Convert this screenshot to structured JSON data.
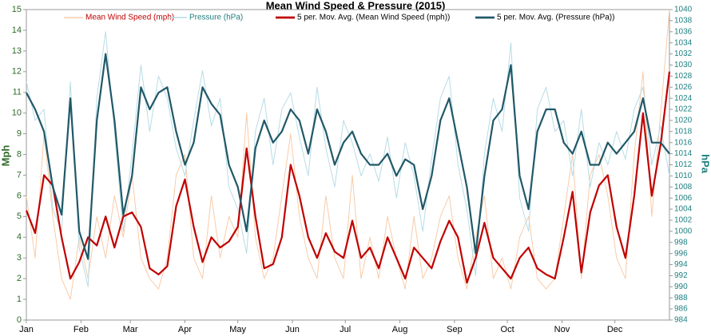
{
  "chart_data": {
    "type": "line",
    "title": "Mean Wind Speed & Pressure (2015)",
    "y_label": "Mph",
    "y2_label": "hPa",
    "xlim": [
      0,
      365
    ],
    "xticks": [
      {
        "value": 0,
        "label": "Jan"
      },
      {
        "value": 31,
        "label": "Feb"
      },
      {
        "value": 59,
        "label": "Mar"
      },
      {
        "value": 90,
        "label": "Apr"
      },
      {
        "value": 120,
        "label": "May"
      },
      {
        "value": 151,
        "label": "Jun"
      },
      {
        "value": 181,
        "label": "Jul"
      },
      {
        "value": 212,
        "label": "Aug"
      },
      {
        "value": 243,
        "label": "Sep"
      },
      {
        "value": 273,
        "label": "Oct"
      },
      {
        "value": 304,
        "label": "Nov"
      },
      {
        "value": 334,
        "label": "Dec"
      }
    ],
    "ylim": [
      0,
      15
    ],
    "yticks": [
      0,
      1,
      2,
      3,
      4,
      5,
      6,
      7,
      8,
      9,
      10,
      11,
      12,
      13,
      14,
      15
    ],
    "y2lim": [
      984,
      1040
    ],
    "y2ticks": [
      984,
      986,
      988,
      990,
      992,
      994,
      996,
      998,
      1000,
      1002,
      1004,
      1006,
      1008,
      1010,
      1012,
      1014,
      1016,
      1018,
      1020,
      1022,
      1024,
      1026,
      1028,
      1030,
      1032,
      1034,
      1036,
      1038,
      1040
    ],
    "x": [
      0,
      5,
      10,
      15,
      20,
      25,
      30,
      35,
      40,
      45,
      50,
      55,
      60,
      65,
      70,
      75,
      80,
      85,
      90,
      95,
      100,
      105,
      110,
      115,
      120,
      125,
      130,
      135,
      140,
      145,
      150,
      155,
      160,
      165,
      170,
      175,
      180,
      185,
      190,
      195,
      200,
      205,
      210,
      215,
      220,
      225,
      230,
      235,
      240,
      245,
      250,
      255,
      260,
      265,
      270,
      275,
      280,
      285,
      290,
      295,
      300,
      305,
      310,
      315,
      320,
      325,
      330,
      335,
      340,
      345,
      350,
      355,
      360,
      365
    ],
    "series": [
      {
        "name": "Mean Wind Speed (mph)",
        "color": "#f9cba8",
        "width": 1,
        "values": [
          6,
          3,
          9,
          5,
          2,
          1,
          4,
          2,
          5,
          3,
          6,
          4,
          7,
          3,
          2,
          1.5,
          3,
          7,
          8,
          3,
          2,
          6,
          3,
          5,
          4,
          10,
          4,
          2,
          3,
          6,
          9,
          5,
          3,
          2,
          6,
          3,
          2,
          7,
          2,
          4,
          2,
          5,
          3,
          1.5,
          5,
          2,
          3,
          5,
          6,
          3,
          1.5,
          4,
          6,
          2,
          3,
          1.5,
          4,
          5,
          2,
          1.5,
          2,
          5,
          8,
          2,
          7,
          8,
          6,
          3,
          2,
          8,
          12,
          5,
          10,
          15
        ]
      },
      {
        "name": "Pressure (hPa)",
        "color": "#b7dce6",
        "width": 1,
        "axis": "y2",
        "values": [
          1027,
          1020,
          1022,
          1004,
          1000,
          1027,
          997,
          990,
          1024,
          1036,
          1018,
          1000,
          1014,
          1030,
          1018,
          1028,
          1024,
          1015,
          1010,
          1020,
          1029,
          1019,
          1024,
          1008,
          1004,
          996,
          1018,
          1024,
          1012,
          1022,
          1025,
          1017,
          1010,
          1026,
          1015,
          1008,
          1020,
          1016,
          1010,
          1014,
          1009,
          1017,
          1006,
          1016,
          1010,
          1000,
          1013,
          1024,
          1028,
          1012,
          1004,
          992,
          1014,
          1024,
          1018,
          1034,
          1006,
          1000,
          1022,
          1026,
          1018,
          1020,
          1010,
          1022,
          1008,
          1016,
          1012,
          1018,
          1013,
          1022,
          1026,
          1012,
          1019,
          1010
        ]
      },
      {
        "name": "5 per. Mov. Avg. (Mean Wind Speed (mph))",
        "color": "#c00000",
        "width": 2.2,
        "values": [
          5.3,
          4.2,
          7.0,
          6.5,
          4.0,
          2.0,
          2.8,
          4.0,
          3.6,
          5.0,
          3.5,
          5.0,
          5.2,
          4.5,
          2.5,
          2.2,
          2.6,
          5.5,
          6.8,
          4.5,
          2.8,
          4.0,
          3.5,
          3.8,
          4.5,
          8.3,
          5.0,
          2.5,
          2.7,
          4.0,
          7.5,
          6.0,
          4.0,
          3.0,
          4.2,
          3.3,
          3.0,
          4.8,
          3.0,
          3.5,
          2.5,
          4.0,
          3.0,
          2.0,
          3.5,
          3.0,
          2.5,
          3.8,
          4.8,
          4.0,
          1.8,
          3.0,
          4.7,
          3.0,
          2.5,
          2.0,
          3.0,
          3.5,
          2.5,
          2.2,
          2.0,
          4.0,
          6.2,
          2.3,
          5.2,
          6.5,
          7.0,
          4.5,
          3.0,
          6.0,
          10.0,
          6.0,
          8.5,
          12.0
        ]
      },
      {
        "name": "5 per. Mov. Avg. (Pressure (hPa))",
        "color": "#215868",
        "width": 2.2,
        "axis": "y2",
        "values": [
          1025,
          1022,
          1018,
          1008,
          1003,
          1024,
          1000,
          995,
          1020,
          1032,
          1020,
          1003,
          1010,
          1026,
          1022,
          1025,
          1026,
          1018,
          1012,
          1016,
          1026,
          1023,
          1021,
          1012,
          1008,
          1000,
          1015,
          1020,
          1016,
          1018,
          1022,
          1020,
          1014,
          1022,
          1018,
          1012,
          1016,
          1018,
          1014,
          1012,
          1012,
          1014,
          1010,
          1013,
          1012,
          1004,
          1010,
          1020,
          1024,
          1016,
          1008,
          996,
          1010,
          1020,
          1022,
          1030,
          1010,
          1004,
          1018,
          1022,
          1022,
          1016,
          1014,
          1018,
          1012,
          1012,
          1016,
          1014,
          1016,
          1018,
          1024,
          1016,
          1016,
          1014
        ]
      }
    ]
  }
}
